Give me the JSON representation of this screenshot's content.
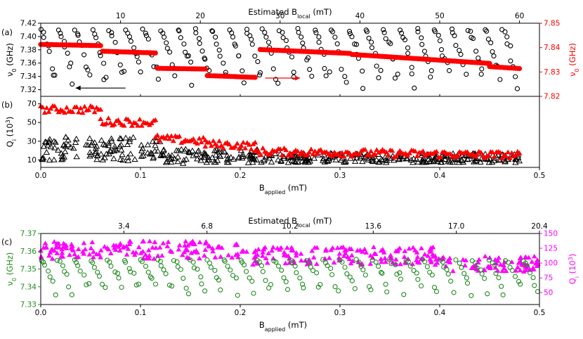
{
  "figure_title": "",
  "chart_data": [
    {
      "id": "a",
      "panel_label": "(a)",
      "type": "scatter",
      "top_axis": {
        "label": "Estimated B",
        "label_sub": "local",
        "label_unit": " (mT)",
        "range": [
          0,
          62.5
        ],
        "ticks": [
          "10",
          "20",
          "30",
          "40",
          "50",
          "60"
        ],
        "tick_values": [
          10,
          20,
          30,
          40,
          50,
          60
        ]
      },
      "x_range": [
        0,
        0.5
      ],
      "left_axis": {
        "label": "ν",
        "label_sub": "0",
        "label_unit": " (GHz)",
        "range": [
          7.31,
          7.42
        ],
        "ticks": [
          "7.32",
          "7.34",
          "7.36",
          "7.38",
          "7.40",
          "7.42"
        ],
        "tick_values": [
          7.32,
          7.34,
          7.36,
          7.38,
          7.4,
          7.42
        ],
        "color": "#000000"
      },
      "right_axis": {
        "label": "ν",
        "label_sub": "0",
        "label_unit": " (GHz)",
        "range": [
          7.82,
          7.85
        ],
        "ticks": [
          "7.82",
          "7.83",
          "7.84",
          "7.85"
        ],
        "tick_values": [
          7.82,
          7.83,
          7.84,
          7.85
        ],
        "color": "#ff0000"
      },
      "series": [
        {
          "name": "ν0 black open circles (left axis)",
          "color": "#000000",
          "marker": "open-circle",
          "axis": "left",
          "model": "sawtooth",
          "segments": 28,
          "x_start": 0.0,
          "x_end": 0.48,
          "y_top": 7.41,
          "y_bottom": 7.32,
          "points_per_segment": 9
        },
        {
          "name": "ν0 red filled circles (right axis)",
          "color": "#ff0000",
          "marker": "filled-circle",
          "axis": "right",
          "model": "steps",
          "steps": [
            {
              "x": [
                0.0,
                0.06
              ],
              "y": [
                7.8413,
                7.8408
              ]
            },
            {
              "x": [
                0.062,
                0.115
              ],
              "y": [
                7.8385,
                7.8378
              ]
            },
            {
              "x": [
                0.117,
                0.165
              ],
              "y": [
                7.8315,
                7.8312
              ]
            },
            {
              "x": [
                0.167,
                0.215
              ],
              "y": [
                7.8285,
                7.8278
              ]
            },
            {
              "x": [
                0.22,
                0.31
              ],
              "y": [
                7.8392,
                7.8376
              ]
            },
            {
              "x": [
                0.312,
                0.45
              ],
              "y": [
                7.8372,
                7.8335
              ]
            },
            {
              "x": [
                0.45,
                0.48
              ],
              "y": [
                7.8322,
                7.8314
              ]
            }
          ]
        }
      ],
      "annotations": [
        {
          "type": "arrow",
          "color": "#000000",
          "from": [
            0.085,
            7.3225
          ],
          "to": [
            0.035,
            7.3225
          ],
          "axis": "left"
        },
        {
          "type": "arrow",
          "color": "#ff0000",
          "from": [
            0.225,
            7.8275
          ],
          "to": [
            0.26,
            7.8275
          ],
          "axis": "right"
        }
      ]
    },
    {
      "id": "b",
      "panel_label": "(b)",
      "type": "scatter",
      "x_range": [
        0,
        0.5
      ],
      "x_label": "B",
      "x_label_sub": "applied",
      "x_label_unit": " (mT)",
      "x_ticks": [
        "0.0",
        "0.1",
        "0.2",
        "0.3",
        "0.4",
        "0.5"
      ],
      "x_tick_values": [
        0.0,
        0.1,
        0.2,
        0.3,
        0.4,
        0.5
      ],
      "left_axis": {
        "label": "Q",
        "label_sub": "i",
        "label_unit": " (10",
        "label_sup": "3",
        "label_end": ")",
        "range": [
          2,
          78
        ],
        "ticks": [
          "10",
          "30",
          "50",
          "70"
        ],
        "tick_values": [
          10,
          30,
          50,
          70
        ],
        "color": "#000000"
      },
      "series": [
        {
          "name": "Qi red filled triangles",
          "color": "#ff0000",
          "marker": "filled-triangle",
          "model": "steps",
          "noise": 4,
          "steps": [
            {
              "x": [
                0.0,
                0.06
              ],
              "y": [
                64,
                64
              ]
            },
            {
              "x": [
                0.06,
                0.115
              ],
              "y": [
                51,
                50
              ]
            },
            {
              "x": [
                0.115,
                0.165
              ],
              "y": [
                33,
                30
              ]
            },
            {
              "x": [
                0.165,
                0.215
              ],
              "y": [
                27,
                25
              ]
            },
            {
              "x": [
                0.215,
                0.48
              ],
              "y": [
                19,
                15
              ]
            }
          ]
        },
        {
          "name": "Qi black open triangles",
          "color": "#000000",
          "marker": "open-triangle",
          "model": "scatter",
          "segments": [
            {
              "x": [
                0.0,
                0.12
              ],
              "y_mean": 22,
              "spread": 13
            },
            {
              "x": [
                0.12,
                0.22
              ],
              "y_mean": 14,
              "spread": 8
            },
            {
              "x": [
                0.22,
                0.48
              ],
              "y_mean": 12,
              "spread": 5
            }
          ]
        }
      ]
    },
    {
      "id": "c",
      "panel_label": "(c)",
      "type": "scatter",
      "top_axis": {
        "label": "Estimated B",
        "label_sub": "local",
        "label_unit": " (mT)",
        "range": [
          0,
          20.4
        ],
        "ticks": [
          "3.4",
          "6.8",
          "10.2",
          "13.6",
          "17.0",
          "20.4"
        ],
        "tick_values": [
          3.4,
          6.8,
          10.2,
          13.6,
          17.0,
          20.4
        ]
      },
      "x_range": [
        0,
        0.5
      ],
      "x_label": "B",
      "x_label_sub": "applied",
      "x_label_unit": " (mT)",
      "x_ticks": [
        "0.0",
        "0.1",
        "0.2",
        "0.3",
        "0.4",
        "0.5"
      ],
      "x_tick_values": [
        0.0,
        0.1,
        0.2,
        0.3,
        0.4,
        0.5
      ],
      "left_axis": {
        "label": "ν",
        "label_sub": "0",
        "label_unit": " (GHz)",
        "range": [
          7.33,
          7.37
        ],
        "ticks": [
          "7.33",
          "7.34",
          "7.35",
          "7.36",
          "7.37"
        ],
        "tick_values": [
          7.33,
          7.34,
          7.35,
          7.36,
          7.37
        ],
        "color": "#228b22"
      },
      "right_axis": {
        "label": "Q",
        "label_sub": "i",
        "label_unit": " (10",
        "label_sup": "3",
        "label_end": ")",
        "range": [
          30,
          150
        ],
        "ticks": [
          "50",
          "75",
          "100",
          "125",
          "150"
        ],
        "tick_values": [
          50,
          75,
          100,
          125,
          150
        ],
        "color": "#ff00ff"
      },
      "series": [
        {
          "name": "ν0 green open circles (left axis)",
          "color": "#228b22",
          "marker": "open-circle",
          "axis": "left",
          "model": "sawtooth",
          "segments": 30,
          "x_start": 0.0,
          "x_end": 0.5,
          "y_top": 7.355,
          "y_bottom": 7.335,
          "points_per_segment": 7
        },
        {
          "name": "Qi magenta filled triangles (right axis)",
          "color": "#ff00ff",
          "marker": "filled-triangle",
          "axis": "right",
          "model": "scatter",
          "segments": [
            {
              "x": [
                0.0,
                0.2
              ],
              "y_mean": 122,
              "spread": 15
            },
            {
              "x": [
                0.2,
                0.4
              ],
              "y_mean": 112,
              "spread": 15
            },
            {
              "x": [
                0.4,
                0.5
              ],
              "y_mean": 98,
              "spread": 14
            }
          ]
        }
      ]
    }
  ]
}
